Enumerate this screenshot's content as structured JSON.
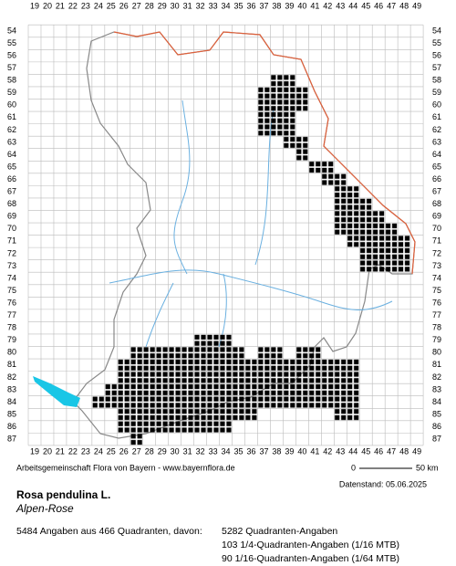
{
  "map": {
    "columns": [
      19,
      20,
      21,
      22,
      23,
      24,
      25,
      26,
      27,
      28,
      29,
      30,
      31,
      32,
      33,
      34,
      35,
      36,
      37,
      38,
      39,
      40,
      41,
      42,
      43,
      44,
      45,
      46,
      47,
      48,
      49
    ],
    "rows": [
      54,
      55,
      56,
      57,
      58,
      59,
      60,
      61,
      62,
      63,
      64,
      65,
      66,
      67,
      68,
      69,
      70,
      71,
      72,
      73,
      74,
      75,
      76,
      77,
      78,
      79,
      80,
      81,
      82,
      83,
      84,
      85,
      86,
      87
    ],
    "squares": [
      [
        58,
        38,
        39
      ],
      [
        59,
        37,
        40
      ],
      [
        60,
        37,
        40
      ],
      [
        61,
        37,
        39
      ],
      [
        62,
        37,
        39
      ],
      [
        63,
        39,
        40
      ],
      [
        64,
        40,
        40
      ],
      [
        65,
        41,
        42
      ],
      [
        66,
        42,
        43
      ],
      [
        67,
        43,
        44
      ],
      [
        68,
        43,
        45
      ],
      [
        69,
        43,
        46
      ],
      [
        70,
        43,
        47
      ],
      [
        71,
        44,
        48
      ],
      [
        72,
        45,
        48
      ],
      [
        73,
        45,
        48
      ],
      [
        79,
        32,
        34
      ],
      [
        80,
        27,
        35
      ],
      [
        80,
        37,
        38
      ],
      [
        80,
        40,
        41
      ],
      [
        81,
        26,
        44
      ],
      [
        82,
        26,
        44
      ],
      [
        83,
        25,
        44
      ],
      [
        84,
        24,
        44
      ],
      [
        85,
        26,
        36
      ],
      [
        85,
        43,
        44
      ],
      [
        86,
        26,
        34
      ],
      [
        87,
        27,
        27
      ]
    ]
  },
  "footer": {
    "credit": "Arbeitsgemeinschaft Flora von Bayern - www.bayernflora.de",
    "scale_start": "0",
    "scale_end": "50 km",
    "date": "Datenstand: 05.06.2025"
  },
  "species": {
    "name": "Rosa pendulina L.",
    "common_name": "Alpen-Rose"
  },
  "stats": {
    "total": "5484 Angaben aus 466 Quadranten, davon:",
    "quadrant": "5282 Quadranten-Angaben",
    "quarter": "103 1/4-Quadranten-Angaben (1/16 MTB)",
    "sixteenth": "90 1/16-Quadranten-Angaben (1/64 MTB)"
  }
}
